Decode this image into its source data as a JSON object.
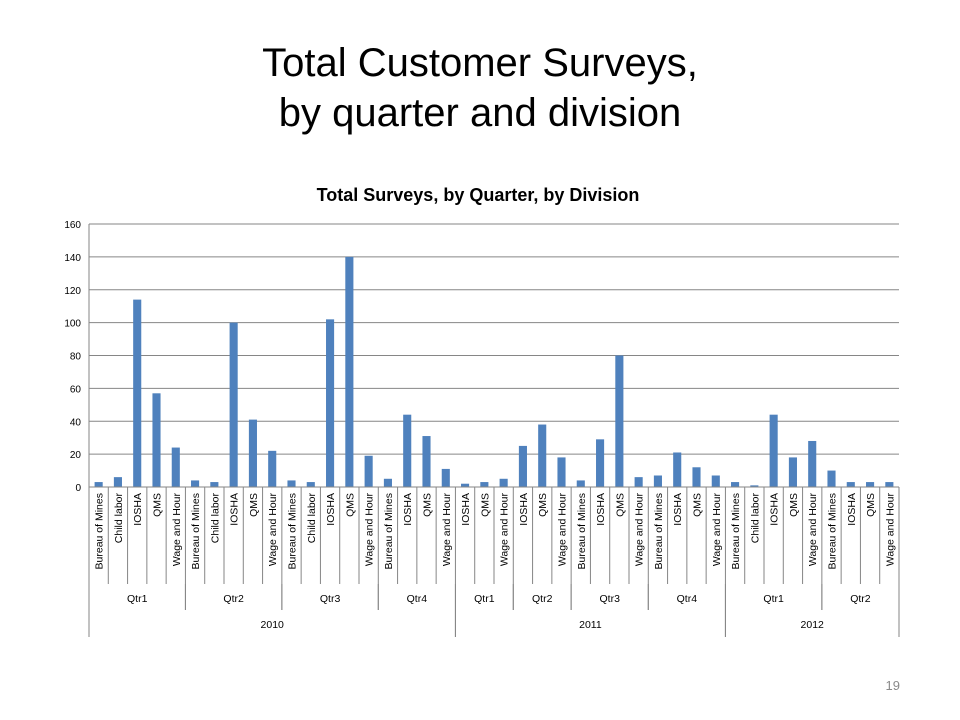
{
  "slide": {
    "title_line1": "Total Customer Surveys,",
    "title_line2": "by quarter and division",
    "page_number": "19"
  },
  "chart_data": {
    "type": "bar",
    "title": "Total Surveys, by Quarter, by Division",
    "xlabel": "",
    "ylabel": "",
    "ylim": [
      0,
      160
    ],
    "yticks": [
      0,
      20,
      40,
      60,
      80,
      100,
      120,
      140,
      160
    ],
    "grid": true,
    "legend": "none",
    "bar_color": "#4f81bd",
    "gridline_color": "#868686",
    "years": [
      {
        "label": "2010",
        "quarters": [
          {
            "label": "Qtr1",
            "items": [
              {
                "division": "Bureau of Mines",
                "value": 3
              },
              {
                "division": "Child labor",
                "value": 6
              },
              {
                "division": "IOSHA",
                "value": 114
              },
              {
                "division": "QMS",
                "value": 57
              },
              {
                "division": "Wage and Hour",
                "value": 24
              }
            ]
          },
          {
            "label": "Qtr2",
            "items": [
              {
                "division": "Bureau of Mines",
                "value": 4
              },
              {
                "division": "Child labor",
                "value": 3
              },
              {
                "division": "IOSHA",
                "value": 100
              },
              {
                "division": "QMS",
                "value": 41
              },
              {
                "division": "Wage and Hour",
                "value": 22
              }
            ]
          },
          {
            "label": "Qtr3",
            "items": [
              {
                "division": "Bureau of Mines",
                "value": 4
              },
              {
                "division": "Child labor",
                "value": 3
              },
              {
                "division": "IOSHA",
                "value": 102
              },
              {
                "division": "QMS",
                "value": 140
              },
              {
                "division": "Wage and Hour",
                "value": 19
              }
            ]
          },
          {
            "label": "Qtr4",
            "items": [
              {
                "division": "Bureau of Mines",
                "value": 5
              },
              {
                "division": "IOSHA",
                "value": 44
              },
              {
                "division": "QMS",
                "value": 31
              },
              {
                "division": "Wage and Hour",
                "value": 11
              }
            ]
          }
        ]
      },
      {
        "label": "2011",
        "quarters": [
          {
            "label": "Qtr1",
            "items": [
              {
                "division": "IOSHA",
                "value": 2
              },
              {
                "division": "QMS",
                "value": 3
              },
              {
                "division": "Wage and Hour",
                "value": 5
              }
            ]
          },
          {
            "label": "Qtr2",
            "items": [
              {
                "division": "IOSHA",
                "value": 25
              },
              {
                "division": "QMS",
                "value": 38
              },
              {
                "division": "Wage and Hour",
                "value": 18
              }
            ]
          },
          {
            "label": "Qtr3",
            "items": [
              {
                "division": "Bureau of Mines",
                "value": 4
              },
              {
                "division": "IOSHA",
                "value": 29
              },
              {
                "division": "QMS",
                "value": 80
              },
              {
                "division": "Wage and Hour",
                "value": 6
              }
            ]
          },
          {
            "label": "Qtr4",
            "items": [
              {
                "division": "Bureau of Mines",
                "value": 7
              },
              {
                "division": "IOSHA",
                "value": 21
              },
              {
                "division": "QMS",
                "value": 12
              },
              {
                "division": "Wage and Hour",
                "value": 7
              }
            ]
          }
        ]
      },
      {
        "label": "2012",
        "quarters": [
          {
            "label": "Qtr1",
            "items": [
              {
                "division": "Bureau of Mines",
                "value": 3
              },
              {
                "division": "Child labor",
                "value": 1
              },
              {
                "division": "IOSHA",
                "value": 44
              },
              {
                "division": "QMS",
                "value": 18
              },
              {
                "division": "Wage and Hour",
                "value": 28
              }
            ]
          },
          {
            "label": "Qtr2",
            "items": [
              {
                "division": "Bureau of Mines",
                "value": 10
              },
              {
                "division": "IOSHA",
                "value": 3
              },
              {
                "division": "QMS",
                "value": 3
              },
              {
                "division": "Wage and Hour",
                "value": 3
              }
            ]
          }
        ]
      }
    ]
  }
}
